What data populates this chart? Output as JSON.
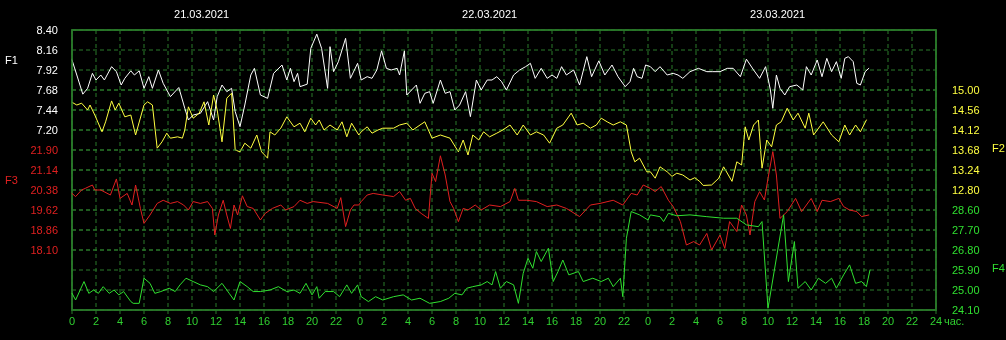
{
  "chart_data": [
    {
      "type": "line",
      "xlabel": "час.",
      "ylabel": "F1",
      "y2label": "F2",
      "grid": true,
      "annotations": [
        "21.03.2021",
        "22.03.2021",
        "23.03.2021"
      ],
      "xlim": [
        "2021-03-21T00:00",
        "2021-03-24T00:00"
      ],
      "xticks": [
        {
          "value": "2021-03-21T00:00",
          "label": "0"
        },
        {
          "value": "2021-03-21T02:00",
          "label": "2"
        },
        {
          "value": "2021-03-21T04:00",
          "label": "4"
        },
        {
          "value": "2021-03-21T06:00",
          "label": "6"
        },
        {
          "value": "2021-03-21T08:00",
          "label": "8"
        },
        {
          "value": "2021-03-21T10:00",
          "label": "10"
        },
        {
          "value": "2021-03-21T12:00",
          "label": "12"
        },
        {
          "value": "2021-03-21T14:00",
          "label": "14"
        },
        {
          "value": "2021-03-21T16:00",
          "label": "16"
        },
        {
          "value": "2021-03-21T18:00",
          "label": "18"
        },
        {
          "value": "2021-03-21T20:00",
          "label": "20"
        },
        {
          "value": "2021-03-21T22:00",
          "label": "22"
        },
        {
          "value": "2021-03-22T00:00",
          "label": "0"
        },
        {
          "value": "2021-03-22T02:00",
          "label": "2"
        },
        {
          "value": "2021-03-22T04:00",
          "label": "4"
        },
        {
          "value": "2021-03-22T06:00",
          "label": "6"
        },
        {
          "value": "2021-03-22T08:00",
          "label": "8"
        },
        {
          "value": "2021-03-22T10:00",
          "label": "10"
        },
        {
          "value": "2021-03-22T12:00",
          "label": "12"
        },
        {
          "value": "2021-03-22T14:00",
          "label": "14"
        },
        {
          "value": "2021-03-22T16:00",
          "label": "16"
        },
        {
          "value": "2021-03-22T18:00",
          "label": "18"
        },
        {
          "value": "2021-03-22T20:00",
          "label": "20"
        },
        {
          "value": "2021-03-22T22:00",
          "label": "22"
        },
        {
          "value": "2021-03-23T00:00",
          "label": "0"
        },
        {
          "value": "2021-03-23T02:00",
          "label": "2"
        },
        {
          "value": "2021-03-23T04:00",
          "label": "4"
        },
        {
          "value": "2021-03-23T06:00",
          "label": "6"
        },
        {
          "value": "2021-03-23T08:00",
          "label": "8"
        },
        {
          "value": "2021-03-23T10:00",
          "label": "10"
        },
        {
          "value": "2021-03-23T12:00",
          "label": "12"
        },
        {
          "value": "2021-03-23T14:00",
          "label": "14"
        },
        {
          "value": "2021-03-23T16:00",
          "label": "16"
        },
        {
          "value": "2021-03-23T18:00",
          "label": "18"
        },
        {
          "value": "2021-03-23T20:00",
          "label": "20"
        },
        {
          "value": "2021-03-23T22:00",
          "label": "22"
        },
        {
          "value": "2021-03-24T00:00",
          "label": "24"
        }
      ],
      "ylim": [
        5.04,
        8.4
      ],
      "yticks": [
        {
          "value": 7.2,
          "label": "7.20"
        },
        7.44,
        7.68,
        7.92,
        8.16,
        {
          "value": 8.4,
          "label": "8.40"
        }
      ],
      "y2lim": [
        10.16,
        16.32
      ],
      "y2ticks": [
        {
          "value": 12.8,
          "label": "12.80"
        },
        13.24,
        13.68,
        14.12,
        14.56,
        {
          "value": 15,
          "label": "15.00"
        }
      ],
      "series": [
        {
          "axis": "y",
          "color": "#ffffff",
          "x": [
            "2021-03-21T00:00",
            "2021-03-21T00:24",
            "2021-03-21T00:54",
            "2021-03-21T01:18",
            "2021-03-21T01:42",
            "2021-03-21T02:00",
            "2021-03-21T02:24",
            "2021-03-21T02:42",
            "2021-03-21T03:18",
            "2021-03-21T03:42",
            "2021-03-21T04:06",
            "2021-03-21T04:24",
            "2021-03-21T04:54",
            "2021-03-21T05:12",
            "2021-03-21T05:36",
            "2021-03-21T06:00",
            "2021-03-21T06:24",
            "2021-03-21T06:42",
            "2021-03-21T07:12",
            "2021-03-21T07:36",
            "2021-03-21T08:12",
            "2021-03-21T08:54",
            "2021-03-21T09:24",
            "2021-03-21T09:42",
            "2021-03-21T10:06",
            "2021-03-21T10:42",
            "2021-03-21T11:18",
            "2021-03-21T11:48",
            "2021-03-21T12:06",
            "2021-03-21T12:30",
            "2021-03-21T12:54",
            "2021-03-21T13:18",
            "2021-03-21T13:36",
            "2021-03-21T14:00",
            "2021-03-21T14:24",
            "2021-03-21T14:54",
            "2021-03-21T15:12",
            "2021-03-21T15:42",
            "2021-03-21T16:18",
            "2021-03-21T16:48",
            "2021-03-21T17:30",
            "2021-03-21T17:54",
            "2021-03-21T18:12",
            "2021-03-21T18:30",
            "2021-03-21T18:48",
            "2021-03-21T19:00",
            "2021-03-21T19:36",
            "2021-03-21T19:54",
            "2021-03-21T20:24",
            "2021-03-21T20:48",
            "2021-03-21T21:18",
            "2021-03-21T21:30",
            "2021-03-21T21:48",
            "2021-03-21T22:12",
            "2021-03-21T22:48",
            "2021-03-21T23:12",
            "2021-03-21T23:48",
            "2021-03-22T00:06",
            "2021-03-22T00:36",
            "2021-03-22T01:00",
            "2021-03-22T01:24",
            "2021-03-22T01:48",
            "2021-03-22T02:12",
            "2021-03-22T02:36",
            "2021-03-22T03:06",
            "2021-03-22T03:18",
            "2021-03-22T03:42",
            "2021-03-22T03:54",
            "2021-03-22T04:18",
            "2021-03-22T04:42",
            "2021-03-22T05:00",
            "2021-03-22T05:24",
            "2021-03-22T05:48",
            "2021-03-22T06:06",
            "2021-03-22T06:42",
            "2021-03-22T07:06",
            "2021-03-22T07:30",
            "2021-03-22T07:54",
            "2021-03-22T08:18",
            "2021-03-22T08:48",
            "2021-03-22T09:12",
            "2021-03-22T09:42",
            "2021-03-22T10:06",
            "2021-03-22T10:36",
            "2021-03-22T11:00",
            "2021-03-22T11:24",
            "2021-03-22T11:48",
            "2021-03-22T12:12",
            "2021-03-22T12:48",
            "2021-03-22T13:18",
            "2021-03-22T13:48",
            "2021-03-22T14:12",
            "2021-03-22T14:36",
            "2021-03-22T15:06",
            "2021-03-22T15:36",
            "2021-03-22T16:00",
            "2021-03-22T16:24",
            "2021-03-22T16:48",
            "2021-03-22T17:12",
            "2021-03-22T17:48",
            "2021-03-22T18:18",
            "2021-03-22T18:54",
            "2021-03-22T19:18",
            "2021-03-22T19:54",
            "2021-03-22T20:24",
            "2021-03-22T21:00",
            "2021-03-22T21:30",
            "2021-03-22T22:06",
            "2021-03-22T22:30",
            "2021-03-22T22:48",
            "2021-03-22T23:06",
            "2021-03-22T23:30",
            "2021-03-22T23:48",
            "2021-03-23T00:12",
            "2021-03-23T00:36",
            "2021-03-23T01:00",
            "2021-03-23T01:36",
            "2021-03-23T02:06",
            "2021-03-23T02:30",
            "2021-03-23T02:54",
            "2021-03-23T03:30",
            "2021-03-23T04:12",
            "2021-03-23T04:54",
            "2021-03-23T05:24",
            "2021-03-23T06:00",
            "2021-03-23T06:36",
            "2021-03-23T07:06",
            "2021-03-23T07:42",
            "2021-03-23T08:12",
            "2021-03-23T08:48",
            "2021-03-23T09:18",
            "2021-03-23T09:48",
            "2021-03-23T10:12",
            "2021-03-23T10:24",
            "2021-03-23T10:42",
            "2021-03-23T11:00",
            "2021-03-23T11:24",
            "2021-03-23T11:48",
            "2021-03-23T12:24",
            "2021-03-23T12:54",
            "2021-03-23T13:12",
            "2021-03-23T13:36",
            "2021-03-23T14:06",
            "2021-03-23T14:30",
            "2021-03-23T14:54",
            "2021-03-23T15:18",
            "2021-03-23T15:42",
            "2021-03-23T16:06",
            "2021-03-23T16:24",
            "2021-03-23T16:42",
            "2021-03-23T17:06",
            "2021-03-23T17:24",
            "2021-03-23T17:42",
            "2021-03-23T18:06",
            "2021-03-23T18:24"
          ],
          "values": [
            8.04,
            7.86,
            7.63,
            7.7,
            7.88,
            7.8,
            7.86,
            7.8,
            7.96,
            7.9,
            7.74,
            7.82,
            7.91,
            7.86,
            7.91,
            7.7,
            7.84,
            7.7,
            7.92,
            7.76,
            7.6,
            7.71,
            7.46,
            7.32,
            7.38,
            7.4,
            7.54,
            7.32,
            7.6,
            7.74,
            7.66,
            7.7,
            7.42,
            7.24,
            7.5,
            7.86,
            7.94,
            7.62,
            7.58,
            7.88,
            7.98,
            7.8,
            7.94,
            7.78,
            7.88,
            7.72,
            7.75,
            8.18,
            8.35,
            8.18,
            7.7,
            8.2,
            7.9,
            8.02,
            8.3,
            7.82,
            8.0,
            7.8,
            7.84,
            7.82,
            7.92,
            8.15,
            7.94,
            7.92,
            7.94,
            7.86,
            8.15,
            7.62,
            7.68,
            7.74,
            7.52,
            7.64,
            7.66,
            7.52,
            7.8,
            7.64,
            7.66,
            7.44,
            7.5,
            7.66,
            7.36,
            7.8,
            7.68,
            7.8,
            7.8,
            7.84,
            7.78,
            7.68,
            7.86,
            7.92,
            7.96,
            8.0,
            7.82,
            7.94,
            7.82,
            7.86,
            7.82,
            7.96,
            7.86,
            7.92,
            7.74,
            8.08,
            7.84,
            8.03,
            7.86,
            7.98,
            7.84,
            7.72,
            7.78,
            7.94,
            7.84,
            7.82,
            7.98,
            7.96,
            7.9,
            7.96,
            7.86,
            7.88,
            7.86,
            7.82,
            7.9,
            7.94,
            7.9,
            7.9,
            7.9,
            7.94,
            7.94,
            7.84,
            8.05,
            7.92,
            7.82,
            7.96,
            7.68,
            7.46,
            7.86,
            7.7,
            7.62,
            7.72,
            7.74,
            7.68,
            7.96,
            7.86,
            8.04,
            7.84,
            8.06,
            7.9,
            8.02,
            7.82,
            8.06,
            8.08,
            8.02,
            7.76,
            7.74,
            7.9,
            7.94
          ]
        },
        {
          "axis": "y2",
          "color": "#ffff40",
          "x": [
            "2021-03-21T00:00",
            "2021-03-21T00:24",
            "2021-03-21T00:48",
            "2021-03-21T01:18",
            "2021-03-21T01:30",
            "2021-03-21T01:54",
            "2021-03-21T02:30",
            "2021-03-21T02:48",
            "2021-03-21T03:18",
            "2021-03-21T03:36",
            "2021-03-21T03:54",
            "2021-03-21T04:24",
            "2021-03-21T04:54",
            "2021-03-21T05:18",
            "2021-03-21T06:00",
            "2021-03-21T06:18",
            "2021-03-21T06:42",
            "2021-03-21T07:06",
            "2021-03-21T07:30",
            "2021-03-21T07:54",
            "2021-03-21T08:12",
            "2021-03-21T08:48",
            "2021-03-21T09:12",
            "2021-03-21T09:24",
            "2021-03-21T09:42",
            "2021-03-21T10:06",
            "2021-03-21T10:36",
            "2021-03-21T11:00",
            "2021-03-21T11:24",
            "2021-03-21T11:48",
            "2021-03-21T12:06",
            "2021-03-21T12:30",
            "2021-03-21T12:54",
            "2021-03-21T13:18",
            "2021-03-21T13:36",
            "2021-03-21T14:00",
            "2021-03-21T14:24",
            "2021-03-21T14:54",
            "2021-03-21T15:24",
            "2021-03-21T15:48",
            "2021-03-21T16:18",
            "2021-03-21T16:30",
            "2021-03-21T16:54",
            "2021-03-21T17:24",
            "2021-03-21T17:54",
            "2021-03-21T18:30",
            "2021-03-21T19:00",
            "2021-03-21T19:24",
            "2021-03-21T19:54",
            "2021-03-21T20:18",
            "2021-03-21T20:36",
            "2021-03-21T21:00",
            "2021-03-21T21:30",
            "2021-03-21T22:06",
            "2021-03-21T22:30",
            "2021-03-21T22:54",
            "2021-03-21T23:18",
            "2021-03-21T23:54",
            "2021-03-22T00:06",
            "2021-03-22T00:36",
            "2021-03-22T01:00",
            "2021-03-22T01:30",
            "2021-03-22T01:54",
            "2021-03-22T02:48",
            "2021-03-22T03:18",
            "2021-03-22T03:54",
            "2021-03-22T04:24",
            "2021-03-22T05:00",
            "2021-03-22T05:24",
            "2021-03-22T06:00",
            "2021-03-22T06:42",
            "2021-03-22T07:30",
            "2021-03-22T08:12",
            "2021-03-22T08:36",
            "2021-03-22T09:00",
            "2021-03-22T09:24",
            "2021-03-22T09:54",
            "2021-03-22T10:18",
            "2021-03-22T10:48",
            "2021-03-22T11:24",
            "2021-03-22T11:54",
            "2021-03-22T12:30",
            "2021-03-22T13:06",
            "2021-03-22T13:36",
            "2021-03-22T14:12",
            "2021-03-22T14:42",
            "2021-03-22T15:18",
            "2021-03-22T15:48",
            "2021-03-22T16:24",
            "2021-03-22T16:54",
            "2021-03-22T17:36",
            "2021-03-22T18:06",
            "2021-03-22T18:36",
            "2021-03-22T19:12",
            "2021-03-22T19:42",
            "2021-03-22T20:06",
            "2021-03-22T20:36",
            "2021-03-22T21:06",
            "2021-03-22T21:42",
            "2021-03-22T22:12",
            "2021-03-22T22:36",
            "2021-03-22T22:54",
            "2021-03-22T23:18",
            "2021-03-22T23:54",
            "2021-03-23T00:12",
            "2021-03-23T00:36",
            "2021-03-23T01:00",
            "2021-03-23T01:36",
            "2021-03-23T02:00",
            "2021-03-23T02:24",
            "2021-03-23T02:54",
            "2021-03-23T03:30",
            "2021-03-23T03:54",
            "2021-03-23T04:18",
            "2021-03-23T04:36",
            "2021-03-23T05:18",
            "2021-03-23T05:54",
            "2021-03-23T06:18",
            "2021-03-23T07:00",
            "2021-03-23T07:24",
            "2021-03-23T07:48",
            "2021-03-23T08:06",
            "2021-03-23T08:24",
            "2021-03-23T08:48",
            "2021-03-23T09:12",
            "2021-03-23T09:30",
            "2021-03-23T09:54",
            "2021-03-23T10:18",
            "2021-03-23T10:42",
            "2021-03-23T11:06",
            "2021-03-23T11:36",
            "2021-03-23T12:06",
            "2021-03-23T12:30",
            "2021-03-23T13:06",
            "2021-03-23T13:24",
            "2021-03-23T13:48",
            "2021-03-23T14:36",
            "2021-03-23T15:18",
            "2021-03-23T15:54",
            "2021-03-23T16:24",
            "2021-03-23T16:48",
            "2021-03-23T17:18",
            "2021-03-23T17:42",
            "2021-03-23T18:12"
          ],
          "values": [
            14.73,
            14.67,
            14.71,
            14.56,
            14.67,
            14.45,
            14.08,
            14.3,
            14.76,
            14.56,
            14.71,
            14.41,
            14.45,
            14.01,
            14.67,
            14.74,
            14.67,
            13.72,
            13.86,
            14.05,
            13.94,
            13.97,
            13.94,
            14.12,
            14.63,
            14.38,
            14.49,
            14.74,
            14.23,
            14.89,
            14.56,
            13.86,
            14.82,
            14.93,
            13.68,
            13.64,
            13.83,
            13.72,
            14.01,
            13.64,
            13.5,
            14.08,
            14.01,
            14.16,
            14.41,
            14.19,
            14.27,
            14.08,
            14.38,
            14.23,
            14.34,
            14.12,
            14.23,
            14.12,
            14.3,
            13.97,
            14.27,
            14.01,
            14.08,
            14.19,
            14.05,
            14.12,
            14.16,
            14.16,
            14.23,
            14.27,
            14.12,
            14.23,
            14.3,
            13.94,
            14.01,
            13.94,
            13.64,
            13.9,
            13.57,
            14.01,
            13.9,
            14.08,
            13.97,
            14.05,
            14.12,
            14.23,
            14.01,
            14.23,
            14.01,
            14.08,
            14.01,
            13.83,
            14.16,
            14.23,
            14.49,
            14.23,
            14.27,
            14.16,
            14.23,
            14.38,
            14.3,
            14.23,
            14.3,
            14.23,
            13.64,
            13.42,
            13.5,
            13.2,
            13.2,
            13.06,
            13.31,
            13.2,
            13.1,
            13.17,
            13.13,
            13.02,
            13.07,
            12.99,
            12.9,
            12.91,
            13.06,
            13.31,
            12.99,
            13.42,
            13.35,
            14.19,
            13.9,
            14.23,
            14.34,
            13.28,
            13.9,
            13.75,
            14.23,
            14.3,
            14.6,
            14.34,
            14.49,
            14.16,
            14.49,
            14.01,
            14.3,
            14.01,
            13.86,
            14.23,
            14.01,
            14.23,
            14.08,
            14.34
          ]
        }
      ]
    },
    {
      "type": "line",
      "ylabel": "F3",
      "y2label": "F4",
      "grid": "y",
      "tick_labels": "y",
      "xlim": [
        "2021-03-21T00:00",
        "2021-03-24T00:00"
      ],
      "ylim": [
        15.82,
        26.46
      ],
      "yticks": [
        {
          "value": 18.1,
          "label": "18.10"
        },
        18.86,
        19.62,
        20.38,
        21.14,
        {
          "value": 21.9,
          "label": "21.90"
        }
      ],
      "y2lim": [
        24.1,
        36.7
      ],
      "y2ticks": [
        {
          "value": 24.1,
          "label": "24.10"
        },
        {
          "value": 25,
          "label": "25.00"
        },
        {
          "value": 25.9,
          "label": "25.90"
        },
        {
          "value": 26.8,
          "label": "26.80"
        },
        {
          "value": 27.7,
          "label": "27.70"
        },
        {
          "value": 28.6,
          "label": "28.60"
        }
      ],
      "series": [
        {
          "axis": "y",
          "color": "#e02020",
          "x": [
            "2021-03-21T00:00",
            "2021-03-21T00:18",
            "2021-03-21T00:48",
            "2021-03-21T01:06",
            "2021-03-21T01:42",
            "2021-03-21T01:54",
            "2021-03-21T02:24",
            "2021-03-21T03:12",
            "2021-03-21T03:42",
            "2021-03-21T04:00",
            "2021-03-21T04:36",
            "2021-03-21T05:00",
            "2021-03-21T05:18",
            "2021-03-21T05:42",
            "2021-03-21T06:00",
            "2021-03-21T06:30",
            "2021-03-21T07:06",
            "2021-03-21T07:36",
            "2021-03-21T08:12",
            "2021-03-21T08:48",
            "2021-03-21T09:18",
            "2021-03-21T09:42",
            "2021-03-21T10:06",
            "2021-03-21T10:42",
            "2021-03-21T11:18",
            "2021-03-21T11:42",
            "2021-03-21T11:54",
            "2021-03-21T12:12",
            "2021-03-21T12:36",
            "2021-03-21T12:54",
            "2021-03-21T13:12",
            "2021-03-21T13:30",
            "2021-03-21T13:48",
            "2021-03-21T14:12",
            "2021-03-21T14:36",
            "2021-03-21T15:06",
            "2021-03-21T15:42",
            "2021-03-21T16:06",
            "2021-03-21T16:42",
            "2021-03-21T17:24",
            "2021-03-21T17:48",
            "2021-03-21T18:30",
            "2021-03-21T19:00",
            "2021-03-21T19:36",
            "2021-03-21T20:06",
            "2021-03-21T21:18",
            "2021-03-21T22:06",
            "2021-03-21T22:24",
            "2021-03-21T22:48",
            "2021-03-21T23:12",
            "2021-03-21T23:30",
            "2021-03-21T23:54",
            "2021-03-22T00:06",
            "2021-03-22T00:36",
            "2021-03-22T01:06",
            "2021-03-22T01:54",
            "2021-03-22T02:48",
            "2021-03-22T03:18",
            "2021-03-22T03:48",
            "2021-03-22T04:12",
            "2021-03-22T04:36",
            "2021-03-22T05:06",
            "2021-03-22T05:42",
            "2021-03-22T06:00",
            "2021-03-22T06:18",
            "2021-03-22T06:42",
            "2021-03-22T07:06",
            "2021-03-22T07:30",
            "2021-03-22T07:48",
            "2021-03-22T08:12",
            "2021-03-22T08:36",
            "2021-03-22T09:00",
            "2021-03-22T09:36",
            "2021-03-22T10:06",
            "2021-03-22T10:48",
            "2021-03-22T11:42",
            "2021-03-22T12:30",
            "2021-03-22T12:54",
            "2021-03-22T13:12",
            "2021-03-22T13:54",
            "2021-03-22T14:42",
            "2021-03-22T15:36",
            "2021-03-22T16:24",
            "2021-03-22T17:12",
            "2021-03-22T18:18",
            "2021-03-22T19:12",
            "2021-03-22T20:00",
            "2021-03-22T21:06",
            "2021-03-22T21:54",
            "2021-03-22T22:36",
            "2021-03-22T23:06",
            "2021-03-22T23:36",
            "2021-03-23T00:12",
            "2021-03-23T00:36",
            "2021-03-23T01:06",
            "2021-03-23T01:42",
            "2021-03-23T02:06",
            "2021-03-23T02:42",
            "2021-03-23T03:12",
            "2021-03-23T03:48",
            "2021-03-23T04:18",
            "2021-03-23T04:54",
            "2021-03-23T05:18",
            "2021-03-23T06:00",
            "2021-03-23T06:24",
            "2021-03-23T06:48",
            "2021-03-23T07:24",
            "2021-03-23T07:48",
            "2021-03-23T08:12",
            "2021-03-23T08:30",
            "2021-03-23T08:54",
            "2021-03-23T09:18",
            "2021-03-23T09:42",
            "2021-03-23T10:00",
            "2021-03-23T10:24",
            "2021-03-23T10:42",
            "2021-03-23T11:00",
            "2021-03-23T11:36",
            "2021-03-23T12:18",
            "2021-03-23T12:48",
            "2021-03-23T13:36",
            "2021-03-23T14:06",
            "2021-03-23T14:30",
            "2021-03-23T15:12",
            "2021-03-23T15:54",
            "2021-03-23T16:18",
            "2021-03-23T16:48",
            "2021-03-23T17:24",
            "2021-03-23T17:48",
            "2021-03-23T18:24"
          ],
          "values": [
            20.25,
            20.13,
            20.38,
            20.44,
            20.57,
            20.38,
            20.38,
            20.19,
            20.8,
            20.06,
            20.25,
            19.81,
            20.57,
            19.68,
            19.11,
            19.43,
            19.87,
            19.99,
            19.87,
            19.94,
            19.81,
            19.62,
            19.94,
            19.87,
            19.94,
            19.68,
            18.67,
            19.43,
            19.99,
            19.43,
            18.92,
            19.81,
            19.43,
            20.16,
            19.75,
            19.68,
            19.24,
            19.49,
            19.68,
            19.81,
            19.62,
            19.75,
            19.99,
            19.87,
            19.94,
            19.87,
            19.68,
            20.09,
            18.99,
            19.62,
            19.81,
            19.81,
            19.94,
            20.19,
            20.25,
            20.19,
            20.13,
            20.32,
            19.99,
            20.06,
            19.68,
            19.49,
            19.3,
            21.01,
            20.7,
            21.68,
            20.95,
            19.94,
            19.68,
            19.18,
            19.68,
            19.62,
            19.81,
            19.62,
            19.81,
            19.75,
            19.94,
            20.44,
            19.99,
            19.99,
            19.94,
            19.75,
            19.81,
            19.68,
            19.37,
            19.81,
            19.87,
            19.99,
            19.81,
            20.25,
            20.19,
            20.57,
            20.44,
            20.32,
            20.51,
            19.99,
            19.75,
            19.18,
            18.29,
            18.42,
            18.29,
            18.73,
            18.1,
            18.67,
            18.16,
            19.18,
            18.8,
            19.81,
            19.43,
            18.67,
            19.94,
            20.32,
            20.0,
            20.82,
            21.84,
            20.95,
            19.3,
            19.56,
            20.06,
            19.56,
            20.06,
            19.56,
            19.99,
            19.94,
            20.06,
            19.75,
            19.62,
            19.56,
            19.37,
            19.43
          ]
        },
        {
          "axis": "y2",
          "color": "#30e030",
          "x": [
            "2021-03-21T00:00",
            "2021-03-21T00:18",
            "2021-03-21T01:00",
            "2021-03-21T01:24",
            "2021-03-21T01:48",
            "2021-03-21T02:12",
            "2021-03-21T02:36",
            "2021-03-21T03:06",
            "2021-03-21T03:30",
            "2021-03-21T03:54",
            "2021-03-21T04:18",
            "2021-03-21T04:54",
            "2021-03-21T05:06",
            "2021-03-21T05:36",
            "2021-03-21T06:00",
            "2021-03-21T06:30",
            "2021-03-21T06:54",
            "2021-03-21T07:24",
            "2021-03-21T08:06",
            "2021-03-21T08:36",
            "2021-03-21T09:00",
            "2021-03-21T09:30",
            "2021-03-21T10:06",
            "2021-03-21T10:42",
            "2021-03-21T11:18",
            "2021-03-21T11:48",
            "2021-03-21T12:30",
            "2021-03-21T13:06",
            "2021-03-21T13:30",
            "2021-03-21T14:00",
            "2021-03-21T14:36",
            "2021-03-21T15:06",
            "2021-03-21T15:42",
            "2021-03-21T16:30",
            "2021-03-21T17:12",
            "2021-03-21T17:54",
            "2021-03-21T18:30",
            "2021-03-21T19:00",
            "2021-03-21T19:30",
            "2021-03-21T20:00",
            "2021-03-21T20:24",
            "2021-03-21T20:36",
            "2021-03-21T21:06",
            "2021-03-21T21:48",
            "2021-03-21T22:18",
            "2021-03-21T22:54",
            "2021-03-21T23:18",
            "2021-03-21T23:48",
            "2021-03-22T00:06",
            "2021-03-22T00:42",
            "2021-03-22T01:18",
            "2021-03-22T01:54",
            "2021-03-22T02:48",
            "2021-03-22T03:36",
            "2021-03-22T04:18",
            "2021-03-22T05:00",
            "2021-03-22T05:48",
            "2021-03-22T06:42",
            "2021-03-22T07:24",
            "2021-03-22T07:54",
            "2021-03-22T08:30",
            "2021-03-22T08:54",
            "2021-03-22T09:24",
            "2021-03-22T10:06",
            "2021-03-22T10:36",
            "2021-03-22T11:00",
            "2021-03-22T11:18",
            "2021-03-22T11:42",
            "2021-03-22T12:12",
            "2021-03-22T12:48",
            "2021-03-22T13:12",
            "2021-03-22T13:36",
            "2021-03-22T14:00",
            "2021-03-22T14:24",
            "2021-03-22T14:42",
            "2021-03-22T15:06",
            "2021-03-22T15:42",
            "2021-03-22T16:06",
            "2021-03-22T16:30",
            "2021-03-22T16:54",
            "2021-03-22T17:24",
            "2021-03-22T18:12",
            "2021-03-22T18:36",
            "2021-03-22T19:24",
            "2021-03-22T20:06",
            "2021-03-22T20:42",
            "2021-03-22T21:06",
            "2021-03-22T21:42",
            "2021-03-22T21:54",
            "2021-03-22T22:12",
            "2021-03-22T22:36",
            "2021-03-22T23:18",
            "2021-03-23T00:00",
            "2021-03-23T00:12",
            "2021-03-23T01:00",
            "2021-03-23T01:18",
            "2021-03-23T01:42",
            "2021-03-23T02:24",
            "2021-03-23T03:30",
            "2021-03-23T04:54",
            "2021-03-23T06:18",
            "2021-03-23T07:24",
            "2021-03-23T08:12",
            "2021-03-23T09:12",
            "2021-03-23T09:30",
            "2021-03-23T10:00",
            "2021-03-23T11:18",
            "2021-03-23T11:42",
            "2021-03-23T12:12",
            "2021-03-23T12:30",
            "2021-03-23T13:06",
            "2021-03-23T13:36",
            "2021-03-23T14:12",
            "2021-03-23T14:48",
            "2021-03-23T15:18",
            "2021-03-23T15:42",
            "2021-03-23T16:18",
            "2021-03-23T16:48",
            "2021-03-23T17:18",
            "2021-03-23T17:48",
            "2021-03-23T18:12",
            "2021-03-23T18:30"
          ],
          "values": [
            24.85,
            24.55,
            25.38,
            24.85,
            25.0,
            24.85,
            25.15,
            24.85,
            25.0,
            24.78,
            24.93,
            24.48,
            24.4,
            24.4,
            25.53,
            25.3,
            24.85,
            24.93,
            25.08,
            24.93,
            25.23,
            25.53,
            25.38,
            25.23,
            25.15,
            24.93,
            25.3,
            24.85,
            24.55,
            25.38,
            25.15,
            24.93,
            24.93,
            25.0,
            25.15,
            24.93,
            25.0,
            24.85,
            25.3,
            24.78,
            25.15,
            24.63,
            24.93,
            24.93,
            24.7,
            25.23,
            24.85,
            25.23,
            24.7,
            24.48,
            24.7,
            24.55,
            24.7,
            24.78,
            24.55,
            24.63,
            24.4,
            24.48,
            24.63,
            24.85,
            24.78,
            25.08,
            25.15,
            25.23,
            25.38,
            25.23,
            25.83,
            25.08,
            25.38,
            25.23,
            24.4,
            25.75,
            26.43,
            25.98,
            26.73,
            26.28,
            26.88,
            25.38,
            25.83,
            26.35,
            25.68,
            25.83,
            25.38,
            25.53,
            25.38,
            25.53,
            25.15,
            25.53,
            24.7,
            27.33,
            28.53,
            28.38,
            28.15,
            28.38,
            28.3,
            28.08,
            28.45,
            28.34,
            28.38,
            28.3,
            28.23,
            28.23,
            27.93,
            27.85,
            28.08,
            24.18,
            28.38,
            25.38,
            27.18,
            25.08,
            25.38,
            25.0,
            25.53,
            25.3,
            25.53,
            25.08,
            25.68,
            26.13,
            25.3,
            25.38,
            25.15,
            25.9
          ]
        }
      ]
    }
  ]
}
